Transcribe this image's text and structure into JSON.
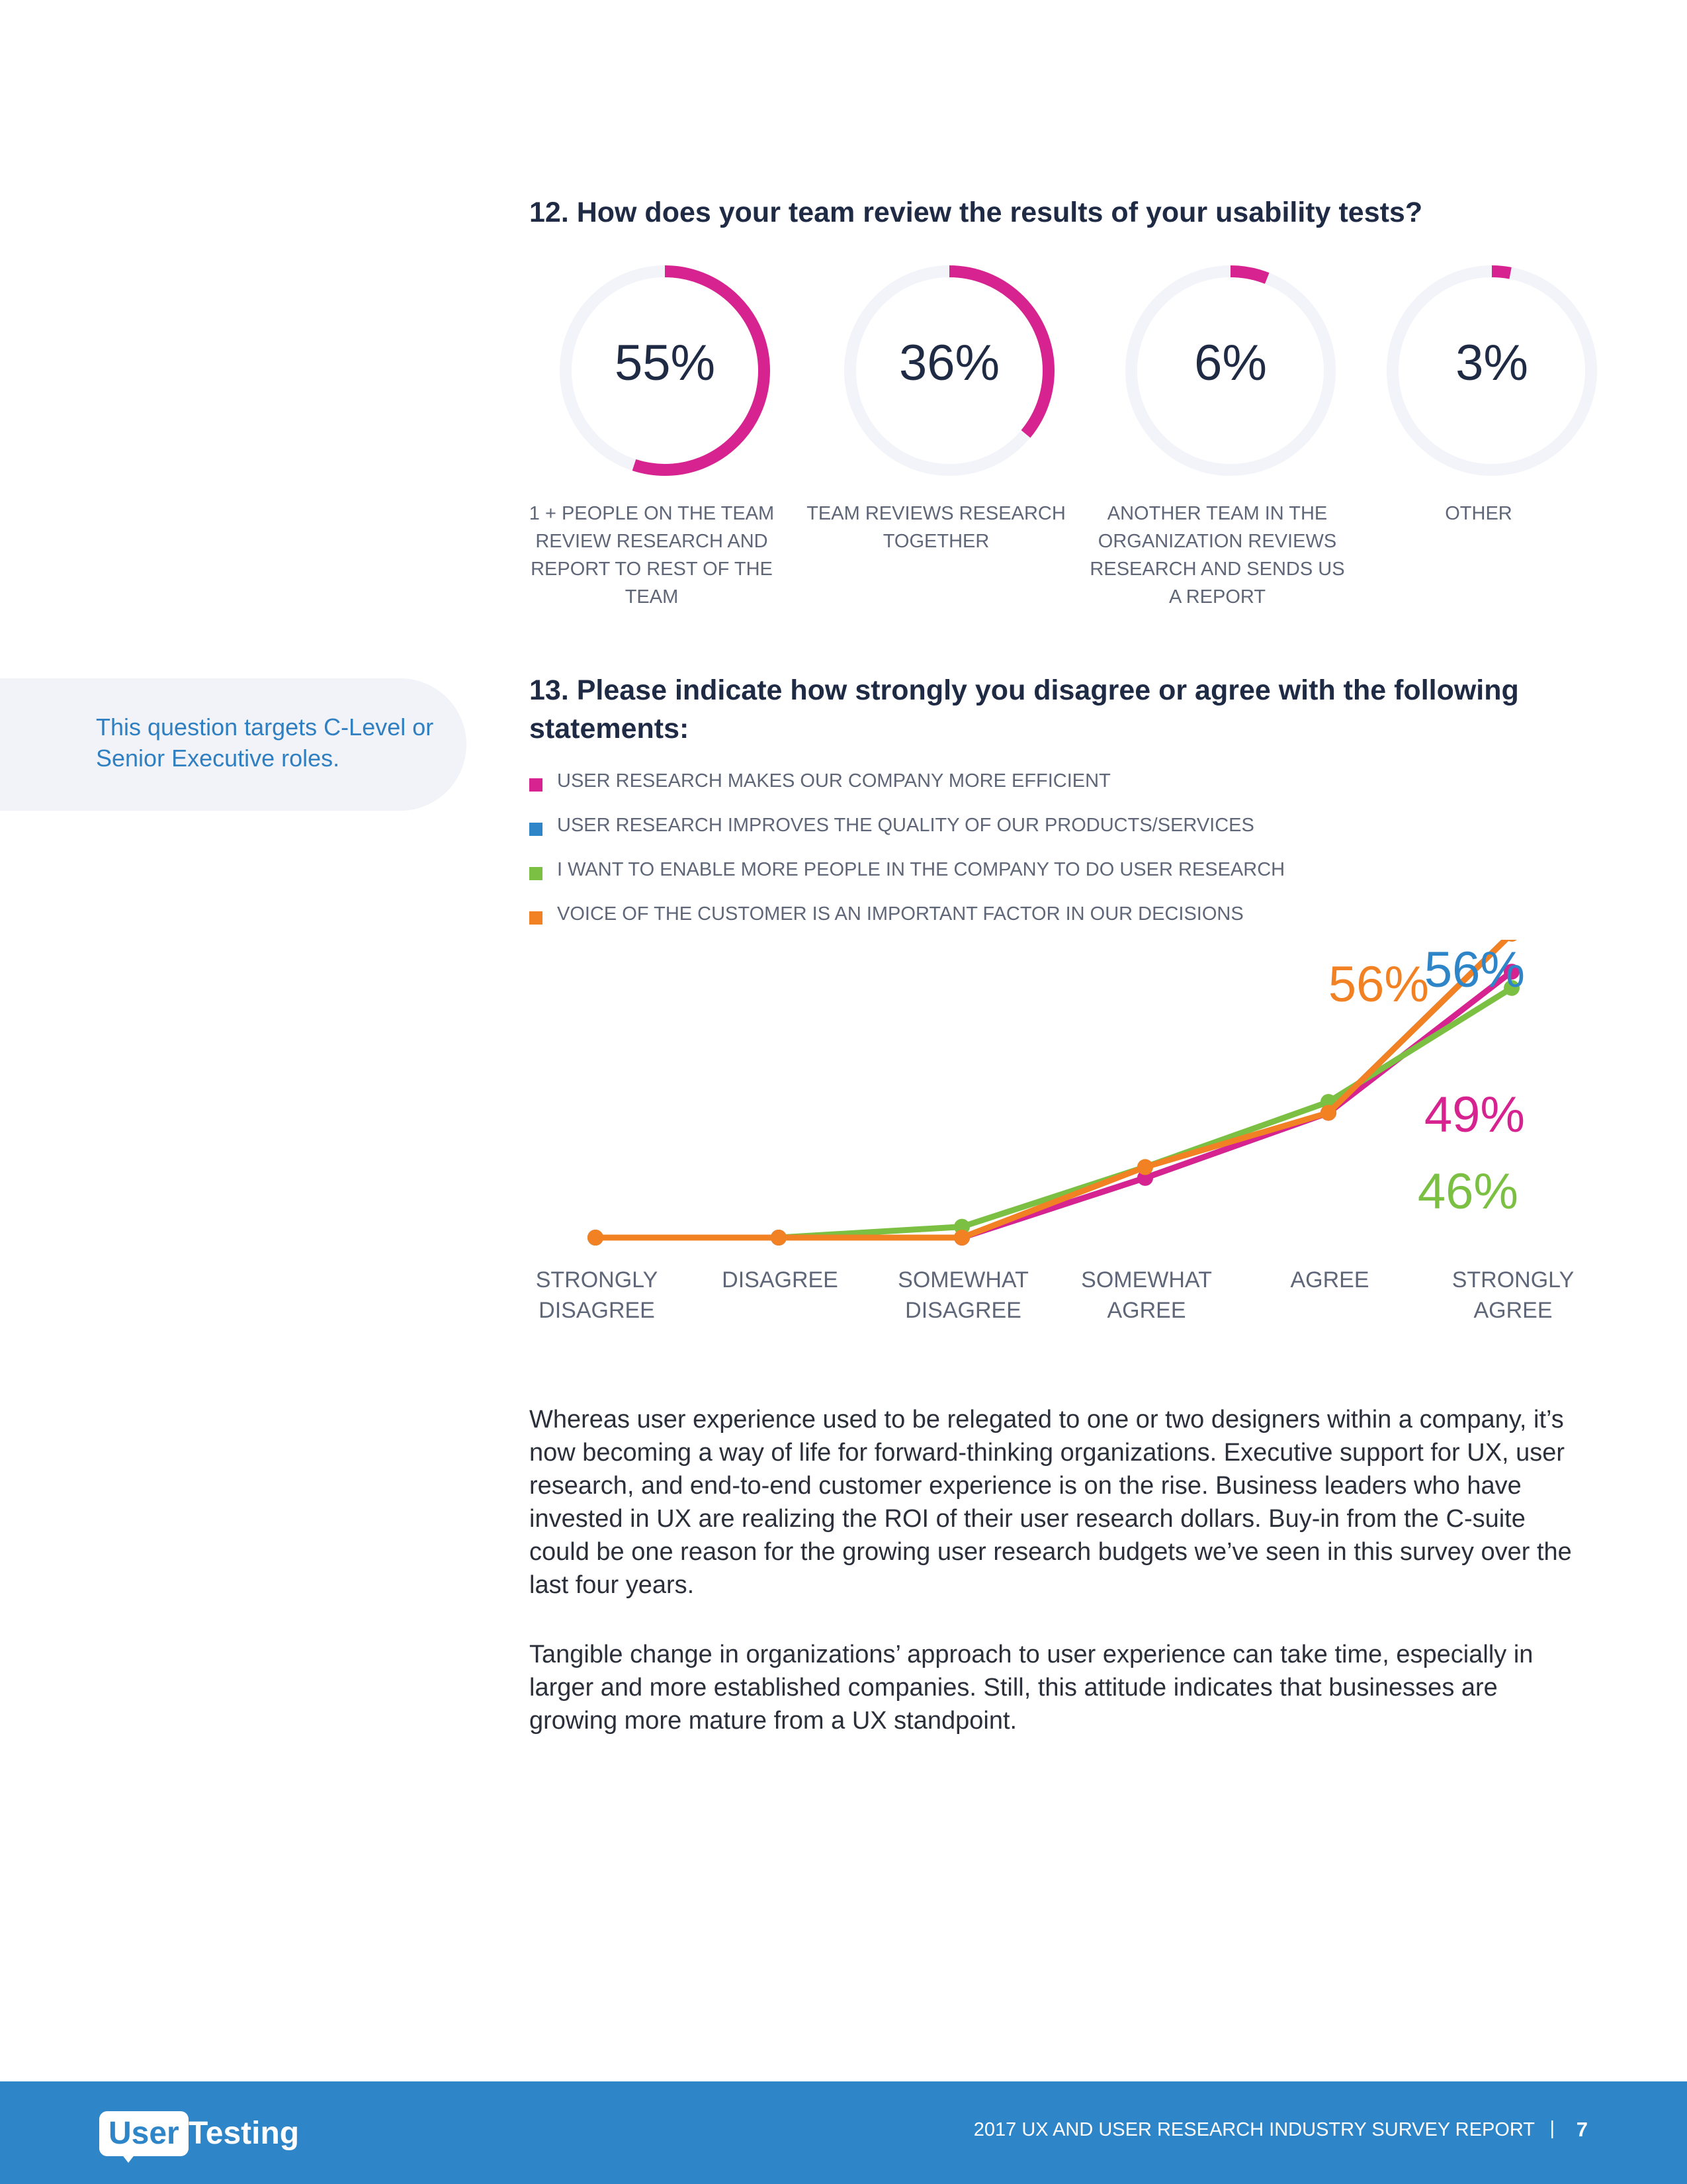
{
  "q12": {
    "title": "12. How does your team review the results of your usability tests?",
    "track_color": "#f3f4f9",
    "arc_color": "#d6238f",
    "items": [
      {
        "value": 55,
        "pct_label": "55%",
        "label": "1 + PEOPLE ON THE TEAM REVIEW RESEARCH AND REPORT TO REST OF THE TEAM"
      },
      {
        "value": 36,
        "pct_label": "36%",
        "label": "TEAM REVIEWS RESEARCH TOGETHER"
      },
      {
        "value": 6,
        "pct_label": "6%",
        "label": "ANOTHER TEAM IN THE ORGANIZATION REVIEWS RESEARCH AND SENDS US A REPORT"
      },
      {
        "value": 3,
        "pct_label": "3%",
        "label": "OTHER"
      }
    ]
  },
  "side_note": "This question targets C-Level or Senior Executive roles.",
  "q13": {
    "title": "13. Please indicate how strongly you disagree or agree with the following statements:"
  },
  "chart_data": {
    "type": "line",
    "title": "13. Please indicate how strongly you disagree or agree with the following statements:",
    "categories": [
      "STRONGLY DISAGREE",
      "DISAGREE",
      "SOMEWHAT DISAGREE",
      "SOMEWHAT AGREE",
      "AGREE",
      "STRONGLY AGREE"
    ],
    "ylim": [
      0,
      60
    ],
    "grid": false,
    "legend_position": "top-left",
    "series": [
      {
        "name": "USER RESEARCH MAKES OUR COMPANY MORE EFFICIENT",
        "color": "#d6238f",
        "values": [
          0,
          0,
          0,
          11,
          23,
          49
        ],
        "end_label": "49%"
      },
      {
        "name": "USER RESEARCH IMPROVES THE QUALITY OF OUR PRODUCTS/SERVICES",
        "color": "#2e85c8",
        "values": [
          0,
          0,
          0,
          11,
          23,
          56
        ],
        "end_label": "56%"
      },
      {
        "name": "I WANT TO ENABLE MORE PEOPLE IN THE COMPANY TO DO USER RESEARCH",
        "color": "#7bc043",
        "values": [
          0,
          0,
          2,
          13,
          25,
          46
        ],
        "end_label": "46%"
      },
      {
        "name": "VOICE OF THE CUSTOMER IS AN IMPORTANT FACTOR IN OUR DECISIONS",
        "color": "#f28123",
        "values": [
          0,
          0,
          0,
          13,
          23,
          56
        ],
        "end_label": "56%"
      }
    ]
  },
  "body": {
    "para1": "Whereas user experience used to be relegated to one or two designers within a company, it’s now becoming a way of life for forward-thinking organizations. Executive support for UX, user research, and end-to-end customer experience is on the rise. Business leaders who have invested in UX are realizing the ROI of their user research dollars. Buy-in from the C-suite could be one reason for the growing user research budgets we’ve seen in this survey over the last four years.",
    "para2": "Tangible change in organizations’ approach to user experience can take time, especially in larger and more established companies. Still, this attitude indicates that businesses are growing more mature from a UX standpoint."
  },
  "footer": {
    "logo_user": "User",
    "logo_testing": "Testing",
    "title": "2017 UX AND USER RESEARCH INDUSTRY SURVEY REPORT",
    "separator": "|",
    "page": "7",
    "background": "#2e85c8"
  }
}
